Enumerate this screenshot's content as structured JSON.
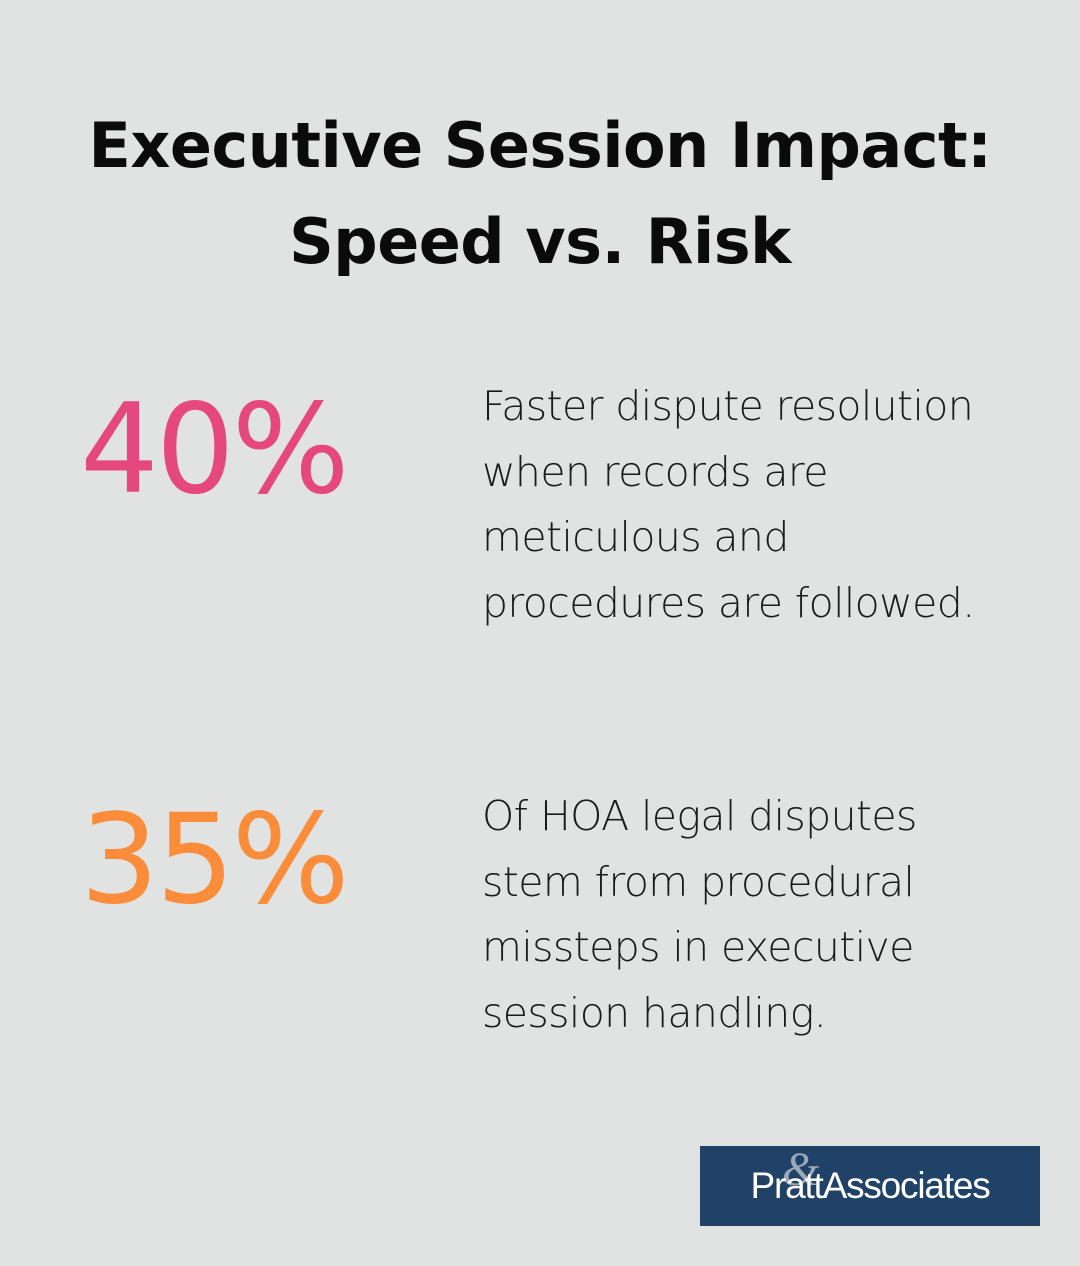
{
  "title": {
    "line1": "Executive Session Impact:",
    "line2": "Speed vs. Risk"
  },
  "stats": [
    {
      "value": "40%",
      "color": "#e5487d",
      "description": "Faster dispute resolution when records are meticulous and procedures are followed."
    },
    {
      "value": "35%",
      "color": "#fb8c3a",
      "description": "Of HOA legal disputes stem from procedural missteps in executive session handling."
    }
  ],
  "logo": {
    "text": "PrattAssociates",
    "mark": "&",
    "background": "#1f4266"
  },
  "colors": {
    "background": "#e1e2e2",
    "text": "#0b0b0b"
  }
}
